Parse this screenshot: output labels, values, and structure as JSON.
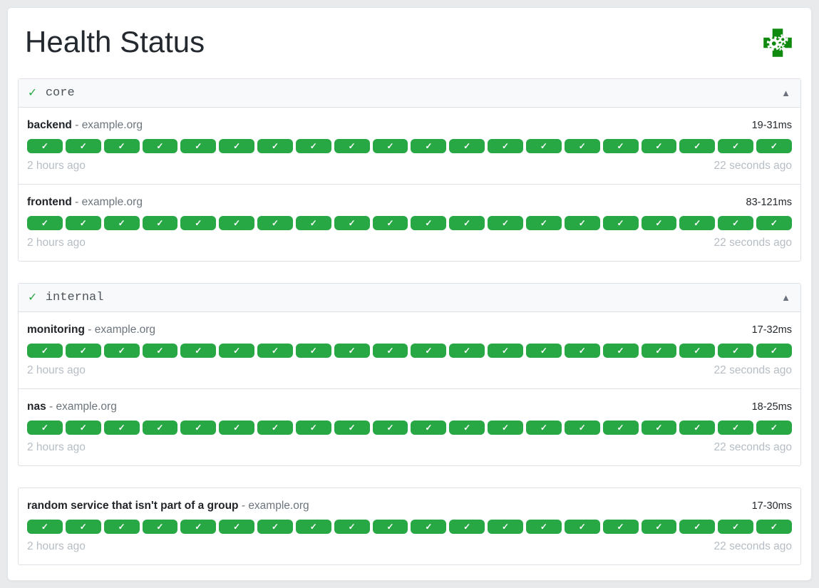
{
  "page": {
    "title": "Health Status"
  },
  "icons": {
    "logo": "health-cross-gears",
    "group_ok": "✓",
    "collapse": "▲",
    "badge_check": "✓"
  },
  "colors": {
    "success_green": "#28a745",
    "logo_green": "#0f8a0f",
    "page_background": "#e8eaec"
  },
  "labels": {
    "separator": "-"
  },
  "sections": [
    {
      "type": "group",
      "name": "core",
      "endpoints": [
        {
          "name": "backend",
          "hostname": "example.org",
          "response_time": "19-31ms",
          "badge_count": 20,
          "badge_glyph": "✓",
          "oldest_result": "2 hours ago",
          "newest_result": "22 seconds ago"
        },
        {
          "name": "frontend",
          "hostname": "example.org",
          "response_time": "83-121ms",
          "badge_count": 20,
          "badge_glyph": "✓",
          "oldest_result": "2 hours ago",
          "newest_result": "22 seconds ago"
        }
      ]
    },
    {
      "type": "group",
      "name": "internal",
      "endpoints": [
        {
          "name": "monitoring",
          "hostname": "example.org",
          "response_time": "17-32ms",
          "badge_count": 20,
          "badge_glyph": "✓",
          "oldest_result": "2 hours ago",
          "newest_result": "22 seconds ago"
        },
        {
          "name": "nas",
          "hostname": "example.org",
          "response_time": "18-25ms",
          "badge_count": 20,
          "badge_glyph": "✓",
          "oldest_result": "2 hours ago",
          "newest_result": "22 seconds ago"
        }
      ]
    },
    {
      "type": "ungrouped",
      "name": "",
      "endpoints": [
        {
          "name": "random service that isn't part of a group",
          "hostname": "example.org",
          "response_time": "17-30ms",
          "badge_count": 20,
          "badge_glyph": "✓",
          "oldest_result": "2 hours ago",
          "newest_result": "22 seconds ago"
        }
      ]
    }
  ]
}
